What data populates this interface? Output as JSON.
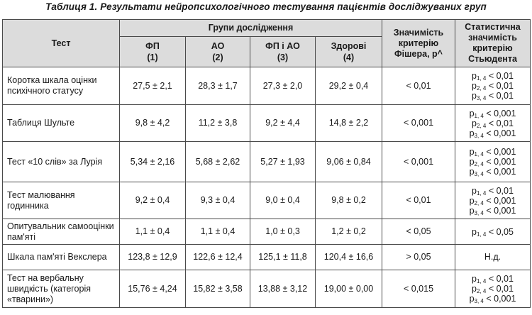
{
  "caption": "Таблиця 1. Результати нейропсихологічного тестування пацієнтів досліджуваних груп",
  "header": {
    "test": "Тест",
    "groups": "Групи дослідження",
    "group_cols": [
      {
        "name": "ФП",
        "num": "(1)"
      },
      {
        "name": "АО",
        "num": "(2)"
      },
      {
        "name": "ФП і АО",
        "num": "(3)"
      },
      {
        "name": "Здорові",
        "num": "(4)"
      }
    ],
    "fisher": "Значимість критерію Фішера, p^",
    "student": "Статистична значимість критерію Стьюдента"
  },
  "rows": [
    {
      "test": "Коротка шкала оцінки психічного статусу",
      "v1": "27,5 ± 2,1",
      "v2": "28,3 ± 1,7",
      "v3": "27,3 ± 2,0",
      "v4": "29,2 ± 0,4",
      "fisher": "< 0,01",
      "student": [
        {
          "p": "p",
          "sub": "1, 4",
          "val": "< 0,01"
        },
        {
          "p": "p",
          "sub": "2, 4",
          "val": "< 0,01"
        },
        {
          "p": "p",
          "sub": "3, 4",
          "val": "< 0,01"
        }
      ]
    },
    {
      "test": "Таблиця Шульте",
      "v1": "9,8 ± 4,2",
      "v2": "11,2 ± 3,8",
      "v3": "9,2 ± 4,4",
      "v4": "14,8 ± 2,2",
      "fisher": "< 0,001",
      "student": [
        {
          "p": "p",
          "sub": "1, 4",
          "val": "< 0,001"
        },
        {
          "p": "p",
          "sub": "2, 4",
          "val": "< 0,01"
        },
        {
          "p": "p",
          "sub": "3, 4",
          "val": "< 0,001"
        }
      ]
    },
    {
      "test": "Тест «10 слів» за Лурія",
      "v1": "5,34 ± 2,16",
      "v2": "5,68 ± 2,62",
      "v3": "5,27 ± 1,93",
      "v4": "9,06 ± 0,84",
      "fisher": "< 0,001",
      "student": [
        {
          "p": "p",
          "sub": "1, 4",
          "val": "< 0,001"
        },
        {
          "p": "p",
          "sub": "2, 4",
          "val": "< 0,001"
        },
        {
          "p": "p",
          "sub": "3, 4",
          "val": "< 0,001"
        }
      ]
    },
    {
      "test": "Тест малювання годинника",
      "v1": "9,2 ± 0,4",
      "v2": "9,3 ± 0,4",
      "v3": "9,0 ± 0,4",
      "v4": "9,8 ± 0,2",
      "fisher": "< 0,01",
      "student": [
        {
          "p": "p",
          "sub": "1, 4",
          "val": "< 0,01"
        },
        {
          "p": "p",
          "sub": "2, 4",
          "val": "< 0,001"
        },
        {
          "p": "p",
          "sub": "3, 4",
          "val": "< 0,001"
        }
      ]
    },
    {
      "test": "Опитувальник самооцінки пам'яті",
      "v1": "1,1 ± 0,4",
      "v2": "1,1 ± 0,4",
      "v3": "1,0 ± 0,3",
      "v4": "1,2 ± 0,2",
      "fisher": "< 0,05",
      "student": [
        {
          "p": "p",
          "sub": "1, 4",
          "val": "< 0,05"
        }
      ]
    },
    {
      "test": "Шкала пам'яті Векслера",
      "v1": "123,8 ± 12,9",
      "v2": "122,6 ± 12,4",
      "v3": "125,1 ± 11,8",
      "v4": "120,4 ± 16,6",
      "fisher": "> 0,05",
      "student_text": "Н.д."
    },
    {
      "test": "Тест на вербальну швидкість (категорія «тварини»)",
      "v1": "15,76 ± 4,24",
      "v2": "15,82 ± 3,58",
      "v3": "13,88 ± 3,12",
      "v4": "19,00 ± 0,00",
      "fisher": "< 0,015",
      "student": [
        {
          "p": "p",
          "sub": "1, 4",
          "val": "< 0,01"
        },
        {
          "p": "p",
          "sub": "2, 4",
          "val": "< 0,01"
        },
        {
          "p": "p",
          "sub": "3, 4",
          "val": "< 0,001"
        }
      ]
    }
  ]
}
